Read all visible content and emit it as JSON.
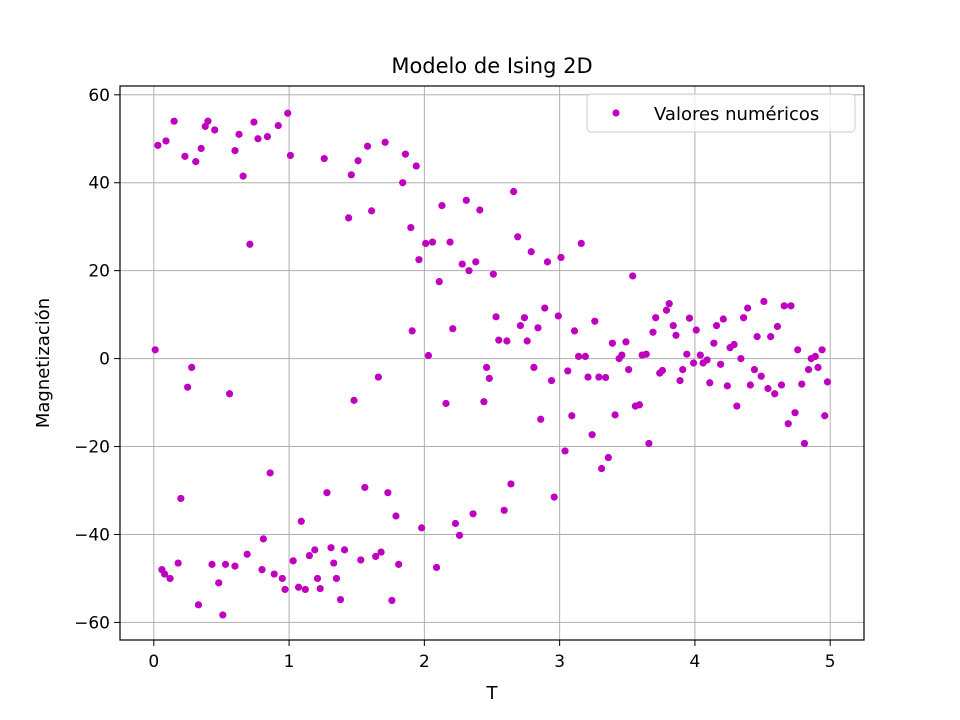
{
  "chart_data": {
    "type": "scatter",
    "title": "Modelo de Ising 2D",
    "xlabel": "T",
    "ylabel": "Magnetización",
    "xlim": [
      -0.25,
      5.25
    ],
    "ylim": [
      -64,
      62
    ],
    "x_ticks": [
      0,
      1,
      2,
      3,
      4,
      5
    ],
    "x_tick_labels": [
      "0",
      "1",
      "2",
      "3",
      "4",
      "5"
    ],
    "y_ticks": [
      -60,
      -40,
      -20,
      0,
      20,
      40,
      60
    ],
    "y_tick_labels": [
      "−60",
      "−40",
      "−20",
      "0",
      "20",
      "40",
      "60"
    ],
    "grid": true,
    "legend_position": "top-right",
    "series": [
      {
        "name": "Valores numéricos",
        "color": "#bf00bf",
        "points": [
          [
            0.01,
            2
          ],
          [
            0.03,
            48.5
          ],
          [
            0.06,
            -48
          ],
          [
            0.09,
            49.5
          ],
          [
            0.08,
            -49
          ],
          [
            0.12,
            -50
          ],
          [
            0.15,
            54
          ],
          [
            0.18,
            -46.5
          ],
          [
            0.2,
            -31.8
          ],
          [
            0.23,
            46
          ],
          [
            0.25,
            -6.5
          ],
          [
            0.28,
            -2
          ],
          [
            0.31,
            44.8
          ],
          [
            0.33,
            -56
          ],
          [
            0.35,
            47.8
          ],
          [
            0.38,
            52.8
          ],
          [
            0.4,
            54
          ],
          [
            0.43,
            -46.8
          ],
          [
            0.45,
            52
          ],
          [
            0.48,
            -51
          ],
          [
            0.51,
            -58.3
          ],
          [
            0.53,
            -46.8
          ],
          [
            0.56,
            -8
          ],
          [
            0.6,
            -47.2
          ],
          [
            0.6,
            47.3
          ],
          [
            0.63,
            51
          ],
          [
            0.66,
            41.5
          ],
          [
            0.69,
            -44.5
          ],
          [
            0.71,
            26
          ],
          [
            0.74,
            53.8
          ],
          [
            0.77,
            50
          ],
          [
            0.8,
            -48
          ],
          [
            0.81,
            -41
          ],
          [
            0.84,
            50.5
          ],
          [
            0.86,
            -26
          ],
          [
            0.89,
            -49
          ],
          [
            0.92,
            53
          ],
          [
            0.95,
            -50
          ],
          [
            0.97,
            -52.5
          ],
          [
            0.99,
            55.8
          ],
          [
            1.01,
            46.2
          ],
          [
            1.03,
            -46
          ],
          [
            1.07,
            -52
          ],
          [
            1.09,
            -37
          ],
          [
            1.12,
            -52.5
          ],
          [
            1.15,
            -44.8
          ],
          [
            1.19,
            -43.5
          ],
          [
            1.21,
            -50
          ],
          [
            1.23,
            -52.3
          ],
          [
            1.26,
            45.5
          ],
          [
            1.28,
            -30.5
          ],
          [
            1.31,
            -43
          ],
          [
            1.33,
            -46.5
          ],
          [
            1.35,
            -50
          ],
          [
            1.38,
            -54.8
          ],
          [
            1.41,
            -43.5
          ],
          [
            1.44,
            32
          ],
          [
            1.46,
            41.8
          ],
          [
            1.48,
            -9.5
          ],
          [
            1.51,
            45
          ],
          [
            1.53,
            -45.8
          ],
          [
            1.56,
            -29.3
          ],
          [
            1.58,
            48.3
          ],
          [
            1.61,
            33.6
          ],
          [
            1.64,
            -45
          ],
          [
            1.66,
            -4.2
          ],
          [
            1.68,
            -44
          ],
          [
            1.71,
            49.2
          ],
          [
            1.73,
            -30.5
          ],
          [
            1.76,
            -55
          ],
          [
            1.79,
            -35.8
          ],
          [
            1.81,
            -46.8
          ],
          [
            1.84,
            40
          ],
          [
            1.86,
            46.5
          ],
          [
            1.9,
            29.8
          ],
          [
            1.91,
            6.3
          ],
          [
            1.94,
            43.8
          ],
          [
            1.96,
            22.5
          ],
          [
            1.98,
            -38.5
          ],
          [
            2.01,
            26.2
          ],
          [
            2.03,
            0.7
          ],
          [
            2.06,
            26.5
          ],
          [
            2.09,
            -47.5
          ],
          [
            2.11,
            17.5
          ],
          [
            2.13,
            34.8
          ],
          [
            2.16,
            -10.2
          ],
          [
            2.19,
            26.5
          ],
          [
            2.21,
            6.8
          ],
          [
            2.23,
            -37.5
          ],
          [
            2.26,
            -40.2
          ],
          [
            2.28,
            21.5
          ],
          [
            2.31,
            36
          ],
          [
            2.33,
            20
          ],
          [
            2.36,
            -35.3
          ],
          [
            2.38,
            22
          ],
          [
            2.41,
            33.8
          ],
          [
            2.44,
            -9.8
          ],
          [
            2.46,
            -2
          ],
          [
            2.48,
            -4.5
          ],
          [
            2.51,
            19.2
          ],
          [
            2.53,
            9.5
          ],
          [
            2.55,
            4.2
          ],
          [
            2.59,
            -34.5
          ],
          [
            2.61,
            4
          ],
          [
            2.64,
            -28.5
          ],
          [
            2.66,
            38
          ],
          [
            2.69,
            27.7
          ],
          [
            2.71,
            7.5
          ],
          [
            2.74,
            9.3
          ],
          [
            2.76,
            4
          ],
          [
            2.79,
            24.3
          ],
          [
            2.81,
            -2
          ],
          [
            2.84,
            7
          ],
          [
            2.86,
            -13.8
          ],
          [
            2.89,
            11.5
          ],
          [
            2.91,
            22
          ],
          [
            2.94,
            -5
          ],
          [
            2.96,
            -31.5
          ],
          [
            2.99,
            9.7
          ],
          [
            3.01,
            23
          ],
          [
            3.04,
            -21
          ],
          [
            3.06,
            -2.8
          ],
          [
            3.09,
            -13
          ],
          [
            3.11,
            6.3
          ],
          [
            3.14,
            0.5
          ],
          [
            3.16,
            26.2
          ],
          [
            3.19,
            0.5
          ],
          [
            3.21,
            -4.2
          ],
          [
            3.24,
            -17.3
          ],
          [
            3.26,
            8.5
          ],
          [
            3.29,
            -4.2
          ],
          [
            3.31,
            -25
          ],
          [
            3.34,
            -4.3
          ],
          [
            3.36,
            -22.5
          ],
          [
            3.39,
            3.5
          ],
          [
            3.41,
            -12.8
          ],
          [
            3.44,
            0
          ],
          [
            3.46,
            0.8
          ],
          [
            3.49,
            3.8
          ],
          [
            3.51,
            -2.5
          ],
          [
            3.54,
            18.8
          ],
          [
            3.56,
            -10.8
          ],
          [
            3.59,
            -10.5
          ],
          [
            3.61,
            0.8
          ],
          [
            3.64,
            1
          ],
          [
            3.66,
            -19.3
          ],
          [
            3.69,
            6
          ],
          [
            3.71,
            9.3
          ],
          [
            3.74,
            -3.3
          ],
          [
            3.76,
            -2.7
          ],
          [
            3.79,
            11
          ],
          [
            3.81,
            12.5
          ],
          [
            3.84,
            7.5
          ],
          [
            3.86,
            5.3
          ],
          [
            3.89,
            -5
          ],
          [
            3.91,
            -2.5
          ],
          [
            3.94,
            1
          ],
          [
            3.96,
            9.2
          ],
          [
            3.99,
            -1
          ],
          [
            4.01,
            6.5
          ],
          [
            4.04,
            0.8
          ],
          [
            4.06,
            -1
          ],
          [
            4.09,
            -0.3
          ],
          [
            4.11,
            -5.5
          ],
          [
            4.14,
            3.5
          ],
          [
            4.16,
            7.5
          ],
          [
            4.19,
            -1.3
          ],
          [
            4.21,
            9
          ],
          [
            4.24,
            -6.2
          ],
          [
            4.26,
            2.5
          ],
          [
            4.29,
            3.2
          ],
          [
            4.31,
            -10.8
          ],
          [
            4.34,
            0
          ],
          [
            4.36,
            9.3
          ],
          [
            4.39,
            11.5
          ],
          [
            4.41,
            -6
          ],
          [
            4.44,
            -2.5
          ],
          [
            4.46,
            5
          ],
          [
            4.49,
            -4
          ],
          [
            4.51,
            13
          ],
          [
            4.54,
            -6.8
          ],
          [
            4.56,
            5
          ],
          [
            4.59,
            -8
          ],
          [
            4.61,
            7.3
          ],
          [
            4.64,
            -6
          ],
          [
            4.66,
            12
          ],
          [
            4.69,
            -14.8
          ],
          [
            4.71,
            12
          ],
          [
            4.74,
            -12.3
          ],
          [
            4.76,
            2
          ],
          [
            4.79,
            -5.8
          ],
          [
            4.81,
            -19.3
          ],
          [
            4.84,
            -2.5
          ],
          [
            4.86,
            0
          ],
          [
            4.89,
            0.5
          ],
          [
            4.91,
            -2
          ],
          [
            4.94,
            2
          ],
          [
            4.96,
            -13
          ],
          [
            4.98,
            -5.3
          ]
        ]
      }
    ]
  }
}
